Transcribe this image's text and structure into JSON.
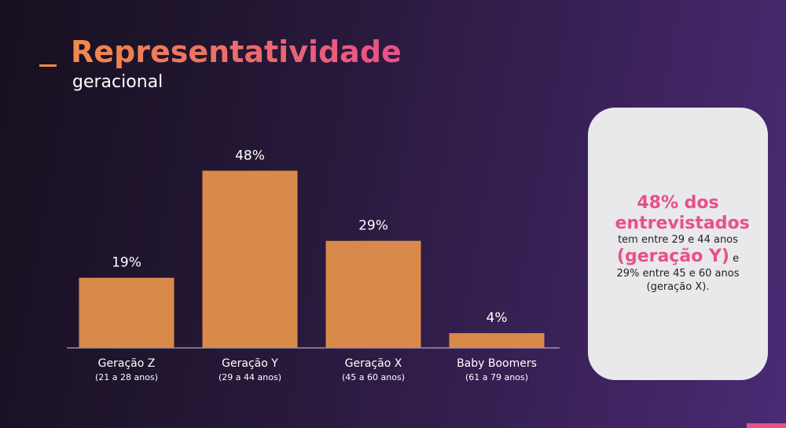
{
  "header": {
    "title": "Representatividade",
    "subtitle": "geracional"
  },
  "chart_data": {
    "type": "bar",
    "categories": [
      "Geração Z",
      "Geração Y",
      "Geração X",
      "Baby Boomers"
    ],
    "category_notes": [
      "(21 a 28 anos)",
      "(29 a 44 anos)",
      "(45 a 60 anos)",
      "(61 a 79 anos)"
    ],
    "values": [
      19,
      48,
      29,
      4
    ],
    "value_labels": [
      "19%",
      "48%",
      "29%",
      "4%"
    ],
    "color": "#d98a4a"
  },
  "card": {
    "highlight": "48% dos entrevistados",
    "line1": "tem entre 29 e 44 anos",
    "highlight2": "(geração Y)",
    "connector": "e",
    "line2": "29% entre 45 e 60 anos",
    "line3": "(geração X)."
  }
}
